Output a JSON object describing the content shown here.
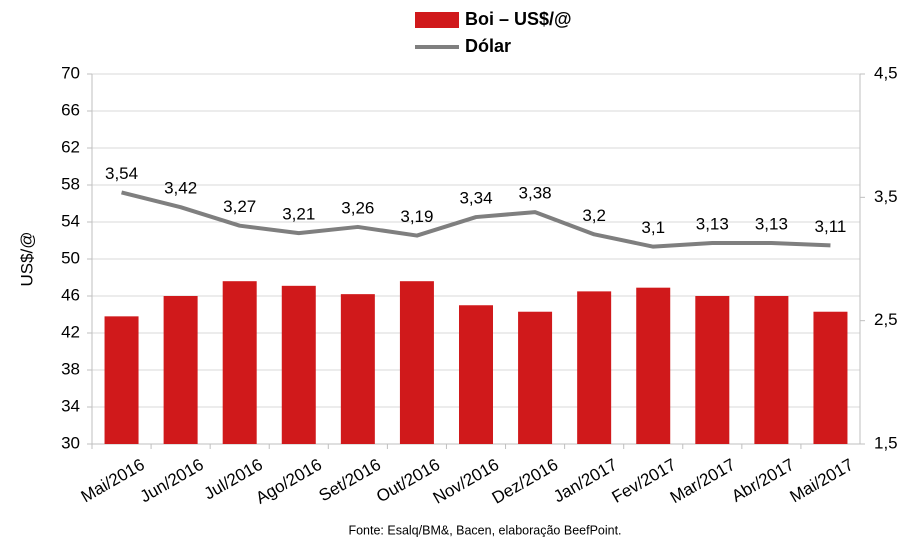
{
  "chart_data": {
    "type": "bar_line",
    "categories": [
      "Mai/2016",
      "Jun/2016",
      "Jul/2016",
      "Ago/2016",
      "Set/2016",
      "Out/2016",
      "Nov/2016",
      "Dez/2016",
      "Jan/2017",
      "Fev/2017",
      "Mar/2017",
      "Abr/2017",
      "Mai/2017"
    ],
    "series": [
      {
        "name": "Boi – US$/@",
        "type": "bar",
        "color": "#d0191b",
        "values": [
          43.8,
          46.0,
          47.6,
          47.1,
          46.2,
          47.6,
          45.0,
          44.3,
          46.5,
          46.9,
          46.0,
          46.0,
          44.3
        ]
      },
      {
        "name": "Dólar",
        "type": "line",
        "axis": "y2",
        "color": "#7f7f7f",
        "values": [
          3.54,
          3.42,
          3.27,
          3.21,
          3.26,
          3.19,
          3.34,
          3.38,
          3.2,
          3.1,
          3.13,
          3.13,
          3.11
        ],
        "value_labels": [
          "3,54",
          "3,42",
          "3,27",
          "3,21",
          "3,26",
          "3,19",
          "3,34",
          "3,38",
          "3,2",
          "3,1",
          "3,13",
          "3,13",
          "3,11"
        ]
      }
    ],
    "ylabel": "US$/@",
    "ylim": [
      30,
      70
    ],
    "yticks": [
      30,
      34,
      38,
      42,
      46,
      50,
      54,
      58,
      62,
      66,
      70
    ],
    "y2lim": [
      1.5,
      4.5
    ],
    "y2ticks": [
      {
        "value": 1.5,
        "label": "1,5"
      },
      {
        "value": 2.5,
        "label": "2,5"
      },
      {
        "value": 3.5,
        "label": "3,5"
      },
      {
        "value": 4.5,
        "label": "4,5"
      }
    ],
    "grid": true,
    "legend": "top",
    "source": "Fonte: Esalq/BM&, Bacen, elaboração BeefPoint."
  }
}
